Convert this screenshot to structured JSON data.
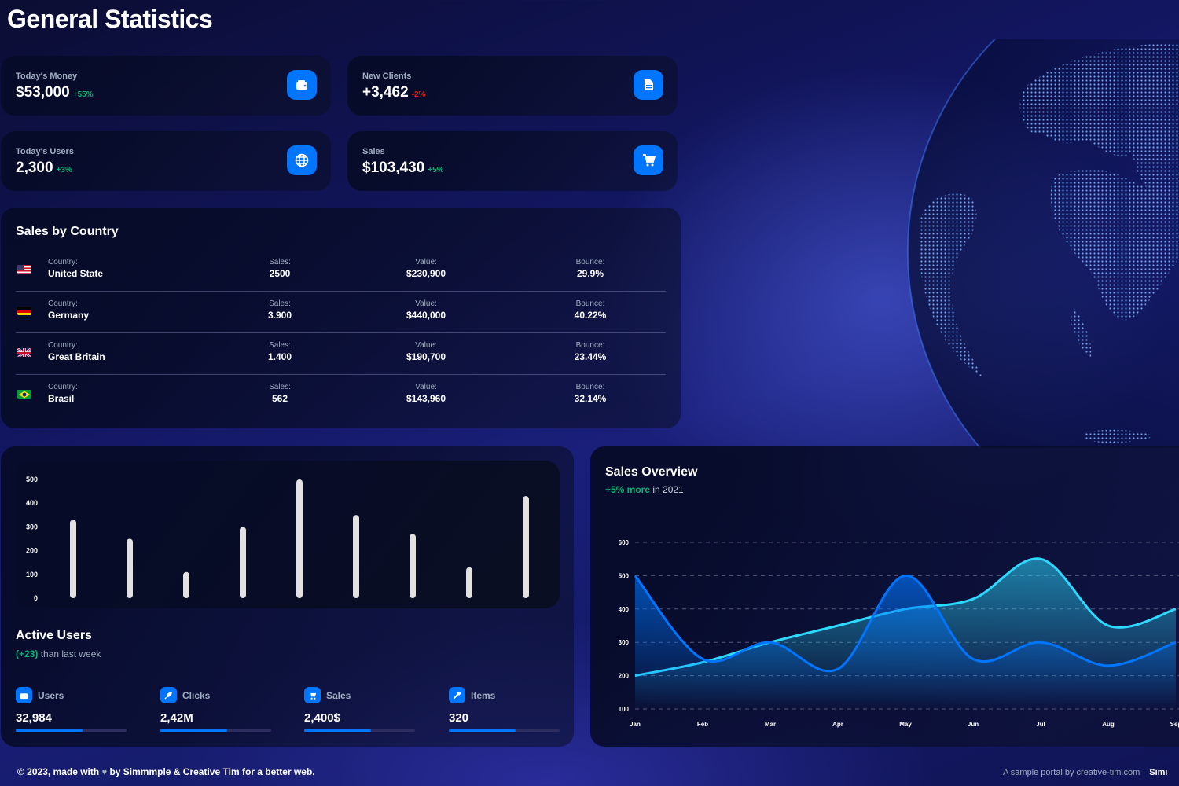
{
  "page_title": "General Statistics",
  "stats": [
    {
      "label": "Today's Money",
      "value": "$53,000",
      "change": "+55%",
      "trend": "pos",
      "icon": "wallet-icon"
    },
    {
      "label": "New Clients",
      "value": "+3,462",
      "change": "-2%",
      "trend": "neg",
      "icon": "document-icon"
    },
    {
      "label": "Today's Users",
      "value": "2,300",
      "change": "+3%",
      "trend": "pos",
      "icon": "globe-icon"
    },
    {
      "label": "Sales",
      "value": "$103,430",
      "change": "+5%",
      "trend": "pos",
      "icon": "cart-icon"
    }
  ],
  "sales_by_country": {
    "title": "Sales by Country",
    "keys": {
      "country": "Country:",
      "sales": "Sales:",
      "value": "Value:",
      "bounce": "Bounce:"
    },
    "rows": [
      {
        "country": "United State",
        "sales": "2500",
        "value": "$230,900",
        "bounce": "29.9%",
        "flag": "us-flag-icon"
      },
      {
        "country": "Germany",
        "sales": "3.900",
        "value": "$440,000",
        "bounce": "40.22%",
        "flag": "de-flag-icon"
      },
      {
        "country": "Great Britain",
        "sales": "1.400",
        "value": "$190,700",
        "bounce": "23.44%",
        "flag": "gb-flag-icon"
      },
      {
        "country": "Brasil",
        "sales": "562",
        "value": "$143,960",
        "bounce": "32.14%",
        "flag": "br-flag-icon"
      }
    ]
  },
  "active_users": {
    "title": "Active Users",
    "subtitle_highlight": "(+23)",
    "subtitle_rest": " than last week",
    "items": [
      {
        "label": "Users",
        "value": "32,984",
        "progress": 0.6,
        "icon": "wallet-icon"
      },
      {
        "label": "Clicks",
        "value": "2,42M",
        "progress": 0.6,
        "icon": "rocket-icon"
      },
      {
        "label": "Sales",
        "value": "2,400$",
        "progress": 0.6,
        "icon": "cart-icon"
      },
      {
        "label": "Items",
        "value": "320",
        "progress": 0.6,
        "icon": "wrench-icon"
      }
    ]
  },
  "sales_overview": {
    "title": "Sales Overview",
    "subtitle_highlight": "+5% more",
    "subtitle_rest": " in 2021"
  },
  "footer": {
    "left_prefix": "© 2023, made with",
    "left_suffix": "by Simmmple & Creative Tim for a better web.",
    "right": "A sample portal by creative-tim.com",
    "right_cut": "Simı"
  },
  "colors": {
    "accent": "#0075ff",
    "positive": "#01b574",
    "negative": "#e31a1a"
  },
  "chart_data": [
    {
      "type": "bar",
      "categories": [
        "",
        "",
        "",
        "",
        "",
        "",
        "",
        "",
        ""
      ],
      "values": [
        330,
        250,
        110,
        300,
        500,
        350,
        270,
        130,
        430
      ],
      "yticks": [
        0,
        100,
        200,
        300,
        400,
        500
      ],
      "ylim": [
        0,
        500
      ],
      "title": "",
      "xlabel": "",
      "ylabel": ""
    },
    {
      "type": "area",
      "x": [
        "Jan",
        "Feb",
        "Mar",
        "Apr",
        "May",
        "Jun",
        "Jul",
        "Aug",
        "Sep"
      ],
      "series": [
        {
          "values": [
            200,
            240,
            300,
            350,
            400,
            430,
            550,
            350,
            400
          ]
        },
        {
          "values": [
            500,
            250,
            300,
            220,
            500,
            250,
            300,
            230,
            300
          ]
        }
      ],
      "yticks": [
        100,
        200,
        300,
        400,
        500,
        600
      ],
      "ylim": [
        100,
        600
      ],
      "title": "",
      "xlabel": "",
      "ylabel": ""
    }
  ]
}
